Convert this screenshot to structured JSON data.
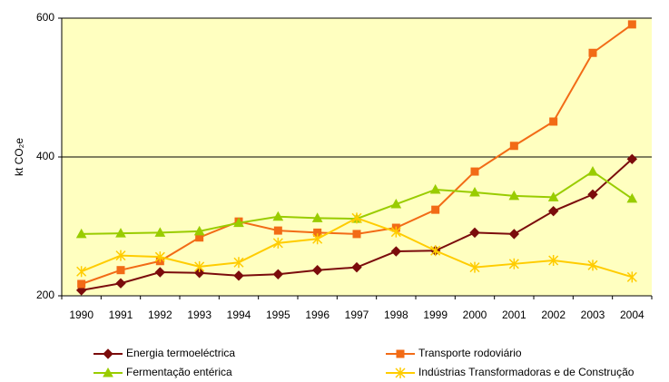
{
  "chart_data": {
    "type": "line",
    "ylabel": "kt CO₂e",
    "categories": [
      "1990",
      "1991",
      "1992",
      "1993",
      "1994",
      "1995",
      "1996",
      "1997",
      "1998",
      "1999",
      "2000",
      "2001",
      "2002",
      "2003",
      "2004"
    ],
    "ylim": [
      200,
      600
    ],
    "yticks": [
      200,
      400,
      600
    ],
    "grid": true,
    "legend": "bottom",
    "series": [
      {
        "name": "Energia termoeléctrica",
        "color": "#7b0c0c",
        "marker": "diamond",
        "values": [
          208,
          218,
          234,
          233,
          229,
          231,
          237,
          241,
          264,
          265,
          291,
          289,
          322,
          346,
          397
        ]
      },
      {
        "name": "Transporte rodoviário",
        "color": "#f26b16",
        "marker": "square",
        "values": [
          217,
          237,
          250,
          284,
          307,
          294,
          291,
          289,
          298,
          324,
          379,
          416,
          451,
          550,
          591
        ]
      },
      {
        "name": "Fermentação entérica",
        "color": "#99cc00",
        "marker": "triangle",
        "values": [
          289,
          290,
          291,
          293,
          305,
          314,
          312,
          311,
          332,
          353,
          349,
          344,
          342,
          379,
          340
        ]
      },
      {
        "name": "Indústrias Transformadoras e de Construção",
        "color": "#ffcc00",
        "marker": "asterisk",
        "values": [
          235,
          258,
          256,
          242,
          248,
          276,
          282,
          312,
          292,
          265,
          241,
          246,
          251,
          244,
          227
        ]
      }
    ]
  }
}
